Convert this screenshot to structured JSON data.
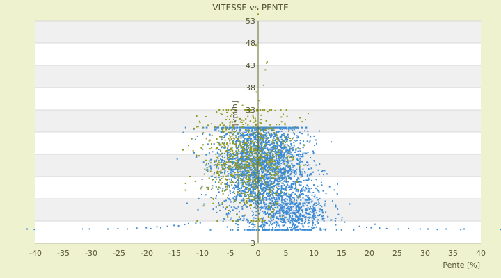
{
  "chart_data": {
    "type": "scatter",
    "title": "VITESSE vs PENTE",
    "xlabel": "Pente [%]",
    "ylabel": "[km/h]",
    "xlim": [
      -40,
      40
    ],
    "ylim": [
      3,
      53
    ],
    "x_ticks": [
      -40,
      -35,
      -30,
      -25,
      -20,
      -15,
      -10,
      -5,
      0,
      5,
      10,
      15,
      20,
      25,
      30,
      35,
      40
    ],
    "y_ticks": [
      3,
      8,
      13,
      18,
      23,
      28,
      33,
      38,
      43,
      48,
      53
    ],
    "y_tick_labels": [
      "3",
      "",
      "",
      "",
      "",
      "",
      "33",
      "38",
      "43",
      "48",
      "53"
    ],
    "grid": true,
    "legend": "none",
    "series": [
      {
        "color": "#3d8bd4",
        "clusters": [
          {
            "n": 2600,
            "cx": 0.5,
            "cy": 21,
            "sx": 4.0,
            "sy": 6.0,
            "ymin": 6,
            "ymax": 29
          },
          {
            "n": 700,
            "cx": 6,
            "cy": 10,
            "sx": 3.5,
            "sy": 3.0,
            "ymin": 6,
            "ymax": 19
          }
        ],
        "extra": [
          [
            -41.5,
            6.2
          ],
          [
            -40.2,
            6.1
          ],
          [
            -31.5,
            6.2
          ],
          [
            -30.3,
            6.2
          ],
          [
            -27.0,
            6.2
          ],
          [
            -25.2,
            6.3
          ],
          [
            -23.5,
            6.2
          ],
          [
            -21.8,
            6.4
          ],
          [
            -20.1,
            6.5
          ],
          [
            -19.3,
            6.3
          ],
          [
            -18.2,
            6.7
          ],
          [
            -17.5,
            6.5
          ],
          [
            -16.3,
            6.8
          ],
          [
            -15.1,
            7.0
          ],
          [
            -14.3,
            6.9
          ],
          [
            -13.2,
            7.2
          ],
          [
            -12.5,
            7.4
          ],
          [
            -11.2,
            7.5
          ],
          [
            -10.4,
            7.6
          ],
          [
            18.2,
            6.8
          ],
          [
            19.5,
            6.6
          ],
          [
            20.3,
            6.5
          ],
          [
            21.8,
            6.4
          ],
          [
            23.1,
            6.3
          ],
          [
            25.2,
            6.2
          ],
          [
            27.0,
            6.3
          ],
          [
            29.1,
            6.2
          ],
          [
            30.5,
            6.2
          ],
          [
            32.2,
            6.1
          ],
          [
            33.8,
            6.2
          ],
          [
            36.4,
            6.1
          ],
          [
            37.0,
            6.2
          ],
          [
            43.5,
            6.1
          ]
        ]
      },
      {
        "color": "#8f9a1e",
        "clusters": [
          {
            "n": 750,
            "cx": -2,
            "cy": 22,
            "sx": 4.0,
            "sy": 6.0,
            "ymin": 8,
            "ymax": 33
          }
        ],
        "extra": [
          [
            -2.8,
            34.0
          ],
          [
            -1.5,
            32.5
          ],
          [
            -0.3,
            37.0
          ],
          [
            0.2,
            35.0
          ],
          [
            0.5,
            30.8
          ],
          [
            1.0,
            38.5
          ],
          [
            1.3,
            42.0
          ],
          [
            1.5,
            43.5
          ],
          [
            1.6,
            43.8
          ],
          [
            -0.4,
            47.5
          ],
          [
            0.0,
            54.5
          ],
          [
            4.5,
            32.0
          ],
          [
            5.2,
            31.5
          ],
          [
            7.5,
            31.2
          ],
          [
            9.0,
            32.2
          ],
          [
            8.5,
            30.8
          ],
          [
            -10.0,
            29.0
          ],
          [
            -11.5,
            28.8
          ],
          [
            -12.5,
            25.0
          ],
          [
            -13.5,
            24.0
          ],
          [
            -9.0,
            29.5
          ]
        ]
      }
    ]
  }
}
